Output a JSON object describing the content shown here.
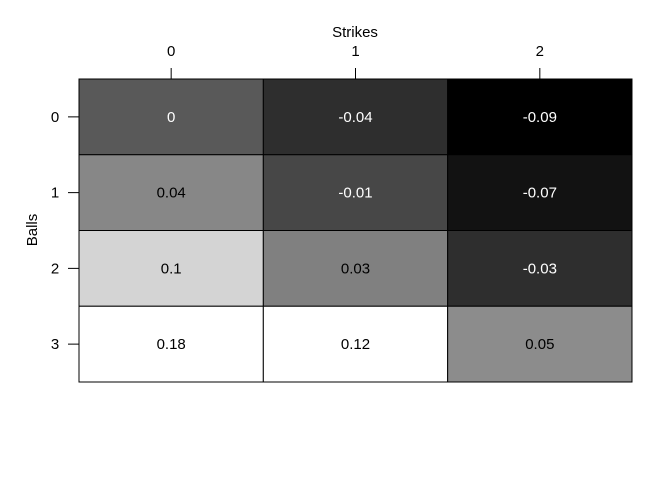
{
  "chart_data": {
    "type": "heatmap",
    "xlabel": "Strikes",
    "ylabel": "Balls",
    "x_categories": [
      "0",
      "1",
      "2"
    ],
    "y_categories": [
      "0",
      "1",
      "2",
      "3"
    ],
    "x_axis_position": "top",
    "values": [
      [
        0,
        -0.04,
        -0.09
      ],
      [
        0.04,
        -0.01,
        -0.07
      ],
      [
        0.1,
        0.03,
        -0.03
      ],
      [
        0.18,
        0.12,
        0.05
      ]
    ],
    "cell_labels": [
      [
        "0",
        "-0.04",
        "-0.09"
      ],
      [
        "0.04",
        "-0.01",
        "-0.07"
      ],
      [
        "0.1",
        "0.03",
        "-0.03"
      ],
      [
        "0.18",
        "0.12",
        "0.05"
      ]
    ],
    "cell_colors": [
      [
        "#595959",
        "#2e2e2e",
        "#000000"
      ],
      [
        "#878787",
        "#474747",
        "#121212"
      ],
      [
        "#d4d4d4",
        "#808080",
        "#2e2e2e"
      ],
      [
        "#ffffff",
        "#ffffff",
        "#8c8c8c"
      ]
    ],
    "grid": false,
    "legend": "none"
  }
}
